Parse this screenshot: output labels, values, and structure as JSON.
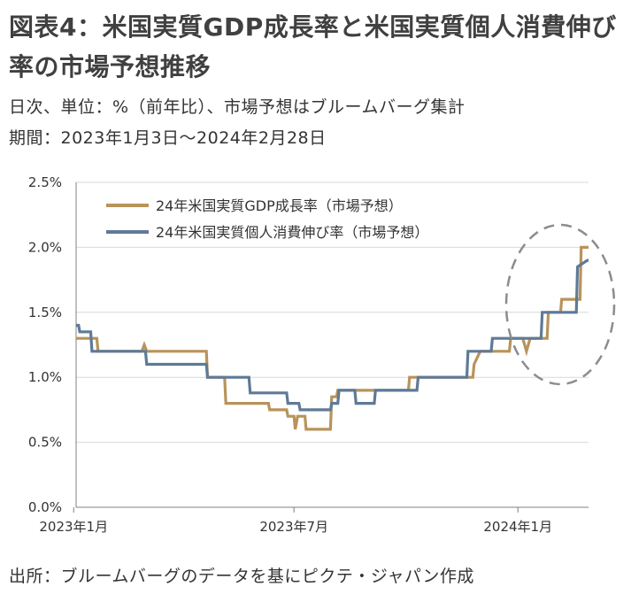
{
  "title": "図表4：米国実質GDP成長率と米国実質個人消費伸び率の市場予想推移",
  "subtitle1": "日次、単位：%（前年比）、市場予想はブルームバーグ集計",
  "subtitle2": "期間：2023年1月3日～2024年2月28日",
  "source": "出所：ブルームバーグのデータを基にピクテ・ジャパン作成",
  "colors": {
    "gdp": "#B8935A",
    "consumption": "#5E7A96",
    "grid": "#D9D9D9",
    "ellipse": "#8C8C8C"
  },
  "chart_data": {
    "type": "line",
    "yticks": [
      "0.0%",
      "0.5%",
      "1.0%",
      "1.5%",
      "2.0%",
      "2.5%"
    ],
    "ylim": [
      0,
      2.5
    ],
    "xlim": [
      "2023-01-03",
      "2024-02-28"
    ],
    "xticks": [
      {
        "label": "2023年1月",
        "date": "2023-01-01"
      },
      {
        "label": "2023年7月",
        "date": "2023-07-01"
      },
      {
        "label": "2024年1月",
        "date": "2024-01-01"
      }
    ],
    "legend_position": "top-left",
    "grid": true,
    "series": [
      {
        "name": "24年米国実質GDP成長率（市場予想）",
        "key": "gdp",
        "points": [
          [
            "2023-01-03",
            1.3
          ],
          [
            "2023-01-20",
            1.3
          ],
          [
            "2023-01-21",
            1.2
          ],
          [
            "2023-02-25",
            1.2
          ],
          [
            "2023-02-26",
            1.2
          ],
          [
            "2023-02-28",
            1.25
          ],
          [
            "2023-03-02",
            1.2
          ],
          [
            "2023-04-20",
            1.2
          ],
          [
            "2023-04-21",
            1.0
          ],
          [
            "2023-05-05",
            1.0
          ],
          [
            "2023-05-06",
            0.8
          ],
          [
            "2023-06-10",
            0.8
          ],
          [
            "2023-06-11",
            0.75
          ],
          [
            "2023-06-25",
            0.75
          ],
          [
            "2023-06-26",
            0.7
          ],
          [
            "2023-07-01",
            0.7
          ],
          [
            "2023-07-02",
            0.6
          ],
          [
            "2023-07-04",
            0.7
          ],
          [
            "2023-07-10",
            0.7
          ],
          [
            "2023-07-11",
            0.6
          ],
          [
            "2023-07-31",
            0.6
          ],
          [
            "2023-08-01",
            0.85
          ],
          [
            "2023-08-05",
            0.85
          ],
          [
            "2023-08-06",
            0.9
          ],
          [
            "2023-10-03",
            0.9
          ],
          [
            "2023-10-04",
            1.0
          ],
          [
            "2023-11-25",
            1.0
          ],
          [
            "2023-11-26",
            1.1
          ],
          [
            "2023-12-01",
            1.2
          ],
          [
            "2023-12-25",
            1.2
          ],
          [
            "2023-12-26",
            1.3
          ],
          [
            "2024-01-05",
            1.3
          ],
          [
            "2024-01-08",
            1.2
          ],
          [
            "2024-01-11",
            1.3
          ],
          [
            "2024-01-25",
            1.3
          ],
          [
            "2024-01-26",
            1.5
          ],
          [
            "2024-02-05",
            1.5
          ],
          [
            "2024-02-06",
            1.6
          ],
          [
            "2024-02-21",
            1.6
          ],
          [
            "2024-02-22",
            2.0
          ],
          [
            "2024-02-28",
            2.0
          ]
        ]
      },
      {
        "name": "24年米国実質個人消費伸び率（市場予想）",
        "key": "consumption",
        "points": [
          [
            "2023-01-03",
            1.4
          ],
          [
            "2023-01-05",
            1.4
          ],
          [
            "2023-01-06",
            1.35
          ],
          [
            "2023-01-15",
            1.35
          ],
          [
            "2023-01-16",
            1.2
          ],
          [
            "2023-03-01",
            1.2
          ],
          [
            "2023-03-02",
            1.1
          ],
          [
            "2023-04-20",
            1.1
          ],
          [
            "2023-04-21",
            1.0
          ],
          [
            "2023-05-25",
            1.0
          ],
          [
            "2023-05-26",
            0.88
          ],
          [
            "2023-06-25",
            0.88
          ],
          [
            "2023-06-26",
            0.8
          ],
          [
            "2023-07-05",
            0.8
          ],
          [
            "2023-07-06",
            0.75
          ],
          [
            "2023-07-31",
            0.75
          ],
          [
            "2023-08-01",
            0.8
          ],
          [
            "2023-08-06",
            0.8
          ],
          [
            "2023-08-07",
            0.9
          ],
          [
            "2023-08-20",
            0.9
          ],
          [
            "2023-08-21",
            0.8
          ],
          [
            "2023-09-05",
            0.8
          ],
          [
            "2023-09-06",
            0.9
          ],
          [
            "2023-10-10",
            0.9
          ],
          [
            "2023-10-11",
            1.0
          ],
          [
            "2023-11-20",
            1.0
          ],
          [
            "2023-11-21",
            1.2
          ],
          [
            "2023-12-10",
            1.2
          ],
          [
            "2023-12-11",
            1.3
          ],
          [
            "2024-01-20",
            1.3
          ],
          [
            "2024-01-21",
            1.5
          ],
          [
            "2024-02-18",
            1.5
          ],
          [
            "2024-02-19",
            1.85
          ],
          [
            "2024-02-27",
            1.9
          ],
          [
            "2024-02-28",
            1.9
          ]
        ]
      }
    ]
  }
}
